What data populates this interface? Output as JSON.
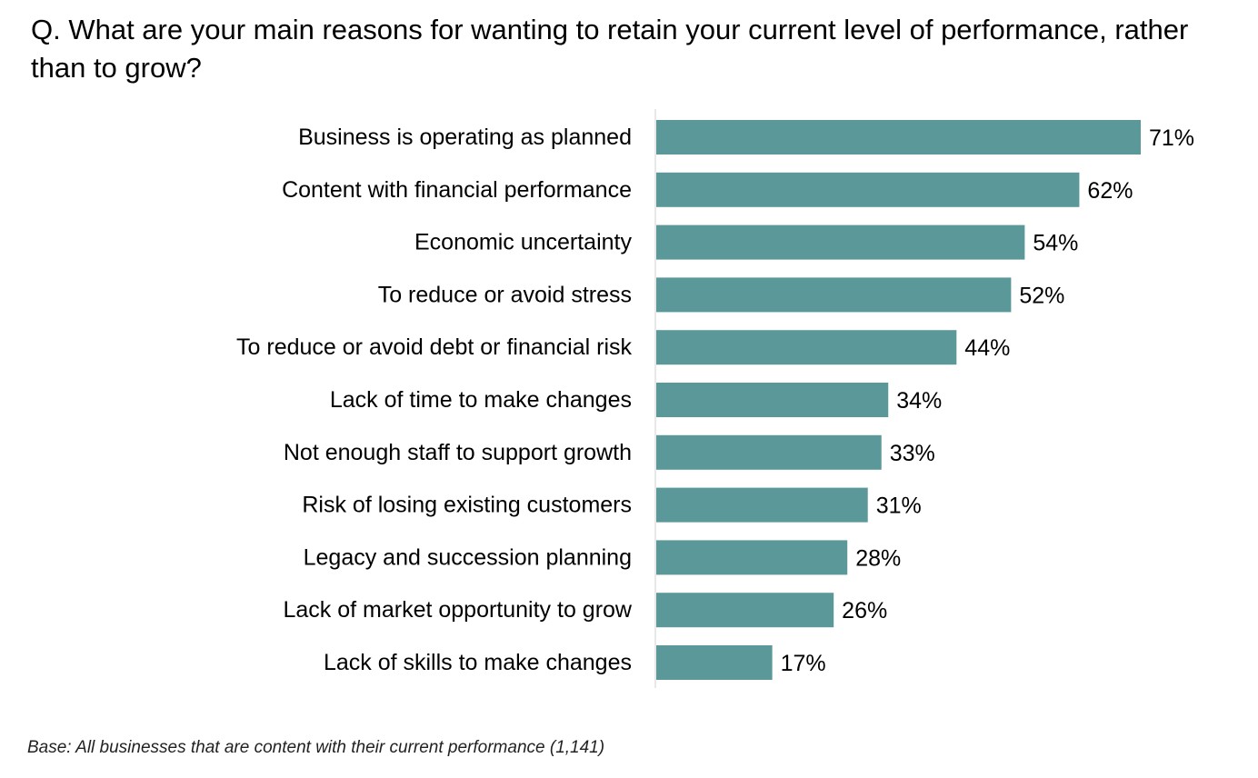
{
  "question": "Q. What are your main reasons for wanting to retain your current level of performance, rather than to grow?",
  "footnote": "Base: All businesses that are content with their current performance (1,141)",
  "colors": {
    "bar": "#5b9899",
    "axis": "#d0d0d0",
    "text": "#000000"
  },
  "chart_data": {
    "type": "bar",
    "orientation": "horizontal",
    "title": "",
    "xlabel": "",
    "ylabel": "",
    "value_suffix": "%",
    "xlim": [
      0,
      71
    ],
    "categories": [
      "Business is operating as planned",
      "Content with financial performance",
      "Economic uncertainty",
      "To reduce or avoid stress",
      "To reduce or avoid debt or financial risk",
      "Lack of time to make changes",
      "Not enough staff to support growth",
      "Risk of losing existing customers",
      "Legacy and succession planning",
      "Lack of market opportunity to grow",
      "Lack of skills to make changes"
    ],
    "values": [
      71,
      62,
      54,
      52,
      44,
      34,
      33,
      31,
      28,
      26,
      17
    ],
    "data_labels": [
      "71%",
      "62%",
      "54%",
      "52%",
      "44%",
      "34%",
      "33%",
      "31%",
      "28%",
      "26%",
      "17%"
    ],
    "grid": false,
    "legend": "none"
  }
}
